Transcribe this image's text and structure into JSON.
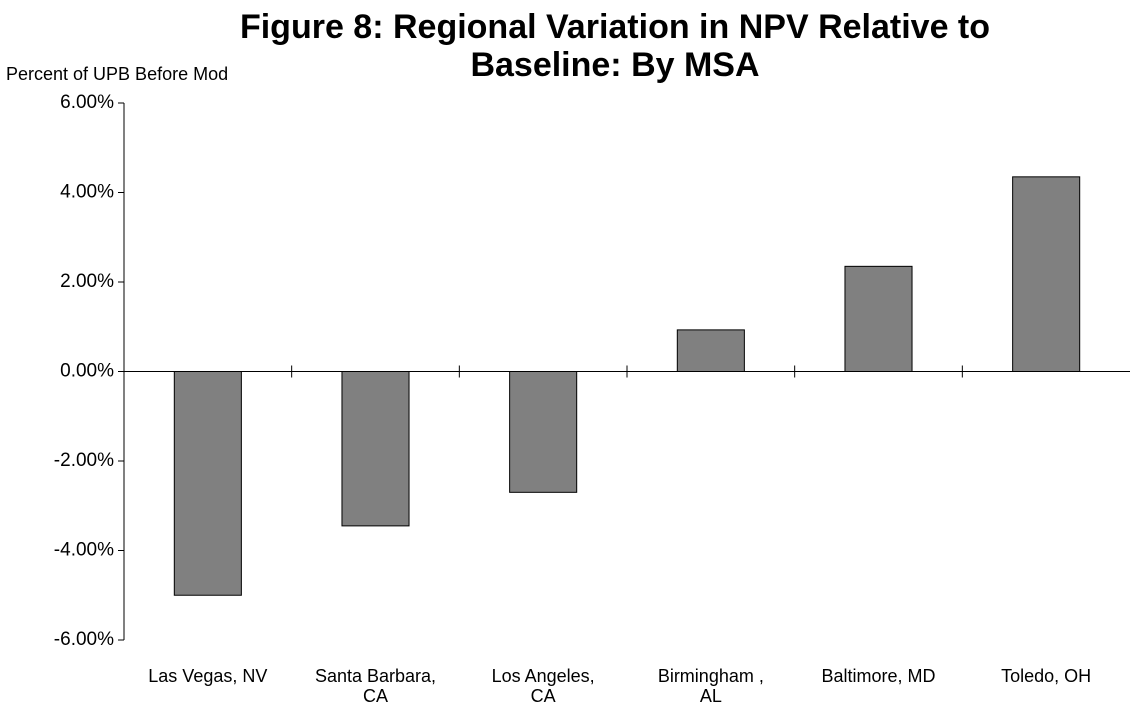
{
  "chart_data": {
    "type": "bar",
    "title": "Figure 8: Regional Variation in NPV Relative to Baseline: By MSA",
    "y_label": "Percent of UPB Before Mod",
    "categories": [
      "Las Vegas, NV",
      "Santa Barbara, CA",
      "Los Angeles, CA",
      "Birmingham , AL",
      "Baltimore, MD",
      "Toledo, OH"
    ],
    "values": [
      -5.0,
      -3.45,
      -2.7,
      0.93,
      2.35,
      4.35
    ],
    "color": "#808080",
    "ylim": [
      -6,
      6
    ],
    "yticks": [
      {
        "value": -6,
        "label": "-6.00%"
      },
      {
        "value": -4,
        "label": "-4.00%"
      },
      {
        "value": -2,
        "label": "-2.00%"
      },
      {
        "value": 0,
        "label": "0.00%"
      },
      {
        "value": 2,
        "label": "2.00%"
      },
      {
        "value": 4,
        "label": "4.00%"
      },
      {
        "value": 6,
        "label": "6.00%"
      }
    ],
    "grid": false
  }
}
